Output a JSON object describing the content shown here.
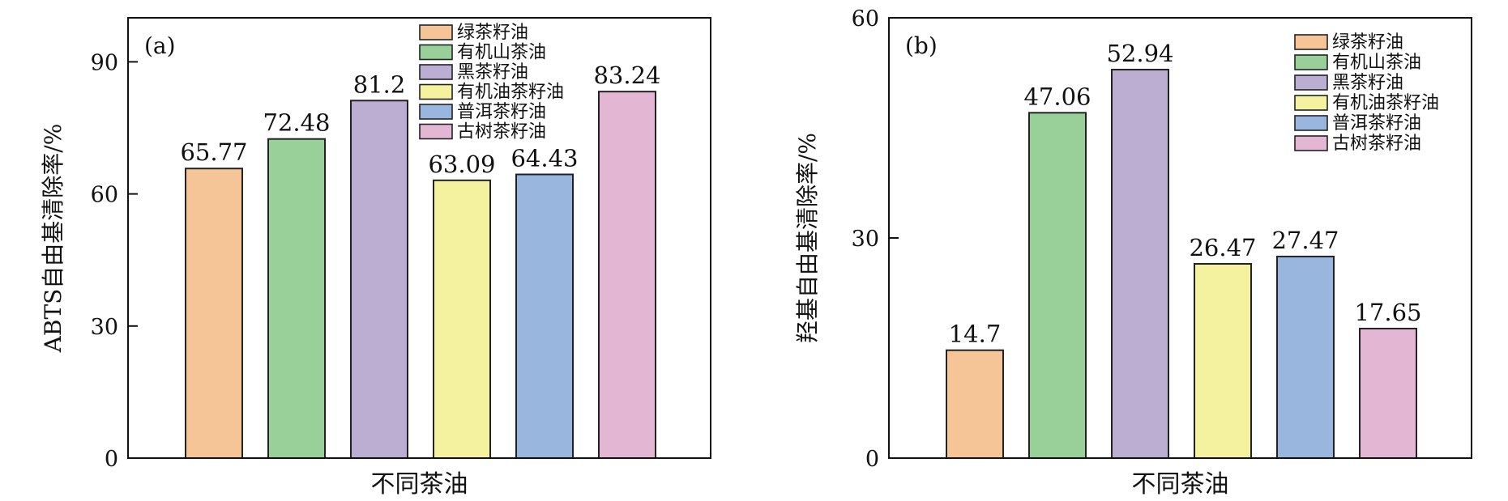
{
  "chart_data": [
    {
      "type": "bar",
      "panel_label": "(a)",
      "xlabel": "不同茶油",
      "ylabel": "ABTS自由基清除率/%",
      "ylim": [
        0,
        100
      ],
      "yticks": [
        0,
        30,
        60,
        90
      ],
      "ytick_labels": [
        "0",
        "30",
        "60",
        "90"
      ],
      "grid": false,
      "legend_position": "top",
      "series": [
        {
          "name": "绿茶籽油",
          "value": 65.77,
          "value_label": "65.77",
          "color": "#f5c497"
        },
        {
          "name": "有机山茶油",
          "value": 72.48,
          "value_label": "72.48",
          "color": "#99d09a"
        },
        {
          "name": "黑茶籽油",
          "value": 81.2,
          "value_label": "81.2",
          "color": "#bcaed3"
        },
        {
          "name": "有机油茶籽油",
          "value": 63.09,
          "value_label": "63.09",
          "color": "#f4f29e"
        },
        {
          "name": "普洱茶籽油",
          "value": 64.43,
          "value_label": "64.43",
          "color": "#98b6de"
        },
        {
          "name": "古树茶籽油",
          "value": 83.24,
          "value_label": "83.24",
          "color": "#e3b6d3"
        }
      ]
    },
    {
      "type": "bar",
      "panel_label": "(b)",
      "xlabel": "不同茶油",
      "ylabel": "羟基自由基清除率/%",
      "ylim": [
        0,
        60
      ],
      "yticks": [
        0,
        30,
        60
      ],
      "ytick_labels": [
        "0",
        "30",
        "60"
      ],
      "grid": false,
      "legend_position": "top-right",
      "series": [
        {
          "name": "绿茶籽油",
          "value": 14.7,
          "value_label": "14.7",
          "color": "#f5c497"
        },
        {
          "name": "有机山茶油",
          "value": 47.06,
          "value_label": "47.06",
          "color": "#99d09a"
        },
        {
          "name": "黑茶籽油",
          "value": 52.94,
          "value_label": "52.94",
          "color": "#bcaed3"
        },
        {
          "name": "有机油茶籽油",
          "value": 26.47,
          "value_label": "26.47",
          "color": "#f4f29e"
        },
        {
          "name": "普洱茶籽油",
          "value": 27.47,
          "value_label": "27.47",
          "color": "#98b6de"
        },
        {
          "name": "古树茶籽油",
          "value": 17.65,
          "value_label": "17.65",
          "color": "#e3b6d3"
        }
      ]
    }
  ]
}
